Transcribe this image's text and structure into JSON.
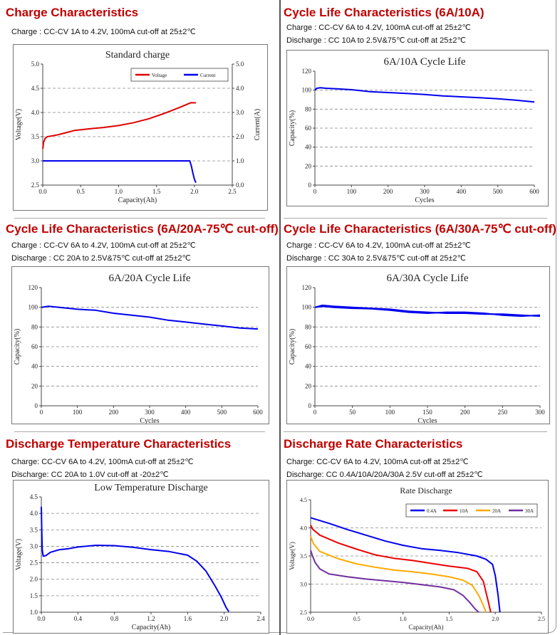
{
  "sections": [
    {
      "title": "Charge Characteristics",
      "lines": [
        "Charge : CC-CV 1A to 4.2V, 100mA cut-off at 25±2℃"
      ]
    },
    {
      "title": "Cycle Life Characteristics (6A/10A)",
      "lines": [
        "Charge : CC-CV 6A to 4.2V, 100mA cut-off at 25±2℃",
        "Discharge : CC 10A to 2.5V&75℃ cut-off at 25±2℃"
      ]
    },
    {
      "title": "Cycle Life Characteristics (6A/20A-75℃ cut-off)",
      "lines": [
        "Charge : CC-CV 6A to 4.2V, 100mA cut-off at 25±2℃",
        "Discharge : CC 20A to 2.5V&75℃ cut-off at 25±2℃"
      ]
    },
    {
      "title": "Cycle Life Characteristics (6A/30A-75℃ cut-off)",
      "lines": [
        "Charge : CC-CV 6A to 4.2V, 100mA cut-off at 25±2℃",
        "Discharge : CC 30A to 2.5V&75℃ cut-off at 25±2℃"
      ]
    },
    {
      "title": "Discharge Temperature Characteristics",
      "lines": [
        "Charge: CC-CV 6A to 4.2V, 100mA cut-off at 25±2℃",
        "Discharge: CC 20A to 1.0V cut-off at -20±2℃"
      ]
    },
    {
      "title": "Discharge Rate Characteristics",
      "lines": [
        "Charge: CC-CV 6A to 4.2V, 100mA cut-off at 25±2℃",
        "Discharge: CC 0.4A/10A/20A/30A 2.5V cut-off at 25±2℃"
      ]
    }
  ],
  "chart_data": [
    {
      "type": "line",
      "title": "Standard charge",
      "xlabel": "Capacity(Ah)",
      "ylabel": "Voltage(V)",
      "y2label": "Current(A)",
      "xlim": [
        0,
        2.5
      ],
      "ylim": [
        2.5,
        5.0
      ],
      "y2lim": [
        0,
        5.0
      ],
      "xticks": [
        "0.0",
        "0.5",
        "1.0",
        "1.5",
        "2.0",
        "2.5"
      ],
      "yticks": [
        "2.5",
        "3.0",
        "3.5",
        "4.0",
        "4.5",
        "5.0"
      ],
      "y2ticks": [
        "0.0",
        "1.0",
        "2.0",
        "3.0",
        "4.0",
        "5.0"
      ],
      "grid": "horizontal dashed",
      "legend": "top-right",
      "series": [
        {
          "name": "Voltage",
          "color": "#e00000",
          "axis": "left",
          "x": [
            0,
            0.01,
            0.03,
            0.06,
            0.1,
            0.2,
            0.3,
            0.42,
            0.6,
            0.8,
            1.0,
            1.2,
            1.4,
            1.6,
            1.8,
            1.95,
            2.02
          ],
          "y": [
            3.25,
            3.38,
            3.46,
            3.5,
            3.51,
            3.54,
            3.58,
            3.63,
            3.66,
            3.69,
            3.73,
            3.79,
            3.87,
            3.98,
            4.1,
            4.2,
            4.2
          ]
        },
        {
          "name": "Current",
          "color": "#0000ee",
          "axis": "right",
          "x": [
            0,
            0.5,
            1.0,
            1.5,
            1.94,
            1.96,
            1.98,
            2.0,
            2.02
          ],
          "y": [
            1.0,
            1.0,
            1.0,
            1.0,
            1.0,
            0.8,
            0.5,
            0.25,
            0.1
          ]
        }
      ]
    },
    {
      "type": "line",
      "title": "6A/10A Cycle Life",
      "xlabel": "Cycles",
      "ylabel": "Capacity(%)",
      "xlim": [
        0,
        600
      ],
      "ylim": [
        0,
        120
      ],
      "xticks": [
        "0",
        "100",
        "200",
        "300",
        "400",
        "500",
        "600"
      ],
      "yticks": [
        "0",
        "20",
        "40",
        "60",
        "80",
        "100",
        "120"
      ],
      "grid": "horizontal dashed",
      "series": [
        {
          "color": "#0000ee",
          "x": [
            0,
            5,
            15,
            30,
            60,
            100,
            150,
            200,
            250,
            300,
            350,
            400,
            450,
            500,
            550,
            600
          ],
          "y": [
            100,
            102,
            102.5,
            102,
            101.5,
            100.5,
            98.5,
            97.5,
            96.5,
            95.5,
            94,
            93,
            92,
            91,
            89.5,
            87.5
          ]
        }
      ]
    },
    {
      "type": "line",
      "title": "6A/20A Cycle Life",
      "xlabel": "Cycles",
      "ylabel": "Capacity(%)",
      "xlim": [
        0,
        600
      ],
      "ylim": [
        0,
        120
      ],
      "xticks": [
        "0",
        "100",
        "200",
        "300",
        "400",
        "500",
        "600"
      ],
      "yticks": [
        "0",
        "20",
        "40",
        "60",
        "80",
        "100",
        "120"
      ],
      "grid": "horizontal dashed",
      "series": [
        {
          "color": "#0000ee",
          "x": [
            0,
            20,
            50,
            100,
            150,
            200,
            250,
            300,
            350,
            400,
            450,
            500,
            550,
            600
          ],
          "y": [
            100,
            101,
            100,
            98,
            97,
            94,
            92,
            90,
            87,
            85,
            83,
            81,
            79,
            78
          ]
        }
      ]
    },
    {
      "type": "line",
      "title": "6A/30A Cycle Life",
      "xlabel": "Cycles",
      "ylabel": "Capacity(%)",
      "xlim": [
        0,
        300
      ],
      "ylim": [
        0,
        120
      ],
      "xticks": [
        "0",
        "50",
        "100",
        "150",
        "200",
        "250",
        "300"
      ],
      "yticks": [
        "0",
        "20",
        "40",
        "60",
        "80",
        "100",
        "120"
      ],
      "grid": "horizontal dashed",
      "series": [
        {
          "color": "#0000ee",
          "x": [
            0,
            10,
            25,
            50,
            75,
            100,
            125,
            150,
            175,
            200,
            225,
            250,
            275,
            300
          ],
          "y": [
            100,
            102,
            101,
            100,
            99,
            98,
            96,
            95,
            94,
            94,
            93,
            93,
            92,
            91
          ]
        },
        {
          "color": "#0000ee",
          "x": [
            0,
            10,
            25,
            50,
            75,
            100,
            125,
            150,
            175,
            200,
            225,
            250,
            275,
            300
          ],
          "y": [
            100,
            101,
            100,
            99,
            98.5,
            97,
            95,
            94,
            95,
            95,
            94,
            92,
            91,
            92
          ]
        }
      ]
    },
    {
      "type": "line",
      "title": "Low Temperature Discharge",
      "xlabel": "Capacity(Ah)",
      "ylabel": "Voltage(V)",
      "xlim": [
        0,
        2.4
      ],
      "ylim": [
        1.0,
        4.5
      ],
      "xticks": [
        "0.0",
        "0.4",
        "0.8",
        "1.2",
        "1.6",
        "2.0",
        "2.4"
      ],
      "yticks": [
        "1.0",
        "1.5",
        "2.0",
        "2.5",
        "3.0",
        "3.5",
        "4.0",
        "4.5"
      ],
      "grid": "horizontal dashed",
      "series": [
        {
          "color": "#0000ee",
          "x": [
            0,
            0.005,
            0.01,
            0.02,
            0.05,
            0.1,
            0.2,
            0.3,
            0.4,
            0.6,
            0.8,
            1.0,
            1.2,
            1.4,
            1.6,
            1.7,
            1.8,
            1.9,
            1.97,
            2.02,
            2.05
          ],
          "y": [
            4.2,
            3.5,
            2.9,
            2.7,
            2.72,
            2.82,
            2.9,
            2.93,
            2.98,
            3.03,
            3.02,
            2.97,
            2.9,
            2.84,
            2.73,
            2.55,
            2.25,
            1.8,
            1.45,
            1.15,
            1.02
          ]
        }
      ]
    },
    {
      "type": "line",
      "title": "Rate Discharge",
      "xlabel": "Capacity(Ah)",
      "ylabel": "Voltage(V)",
      "xlim": [
        0,
        2.5
      ],
      "ylim": [
        2.5,
        4.5
      ],
      "xticks": [
        "0.0",
        "0.5",
        "1.0",
        "1.5",
        "2.0",
        "2.5"
      ],
      "yticks": [
        "2.5",
        "3.0",
        "3.5",
        "4.0",
        "4.5"
      ],
      "grid": "horizontal dashed",
      "legend": "top-right",
      "series": [
        {
          "name": "0.4A",
          "color": "#0000ee",
          "x": [
            0,
            0.2,
            0.4,
            0.6,
            0.8,
            1.0,
            1.2,
            1.4,
            1.6,
            1.8,
            1.9,
            1.97,
            2.0,
            2.03,
            2.05
          ],
          "y": [
            4.18,
            4.08,
            3.97,
            3.87,
            3.77,
            3.69,
            3.63,
            3.6,
            3.56,
            3.5,
            3.44,
            3.35,
            3.15,
            2.8,
            2.5
          ]
        },
        {
          "name": "10A",
          "color": "#ee0000",
          "x": [
            0,
            0.02,
            0.1,
            0.3,
            0.5,
            0.7,
            0.9,
            1.1,
            1.3,
            1.5,
            1.7,
            1.8,
            1.87,
            1.9,
            1.93,
            1.95
          ],
          "y": [
            4.05,
            3.98,
            3.87,
            3.73,
            3.62,
            3.52,
            3.46,
            3.42,
            3.37,
            3.32,
            3.28,
            3.22,
            3.05,
            2.85,
            2.65,
            2.5
          ]
        },
        {
          "name": "20A",
          "color": "#ffaa00",
          "x": [
            0,
            0.03,
            0.1,
            0.3,
            0.5,
            0.7,
            0.9,
            1.1,
            1.3,
            1.5,
            1.65,
            1.75,
            1.82,
            1.87,
            1.9
          ],
          "y": [
            3.85,
            3.72,
            3.58,
            3.45,
            3.36,
            3.3,
            3.25,
            3.22,
            3.18,
            3.13,
            3.07,
            2.98,
            2.8,
            2.62,
            2.5
          ]
        },
        {
          "name": "30A",
          "color": "#7030a0",
          "x": [
            0,
            0.02,
            0.05,
            0.1,
            0.2,
            0.4,
            0.6,
            0.8,
            1.0,
            1.2,
            1.4,
            1.55,
            1.65,
            1.72,
            1.78,
            1.82
          ],
          "y": [
            3.6,
            3.5,
            3.38,
            3.27,
            3.18,
            3.13,
            3.09,
            3.06,
            3.03,
            2.99,
            2.95,
            2.9,
            2.8,
            2.68,
            2.56,
            2.5
          ]
        }
      ]
    }
  ]
}
